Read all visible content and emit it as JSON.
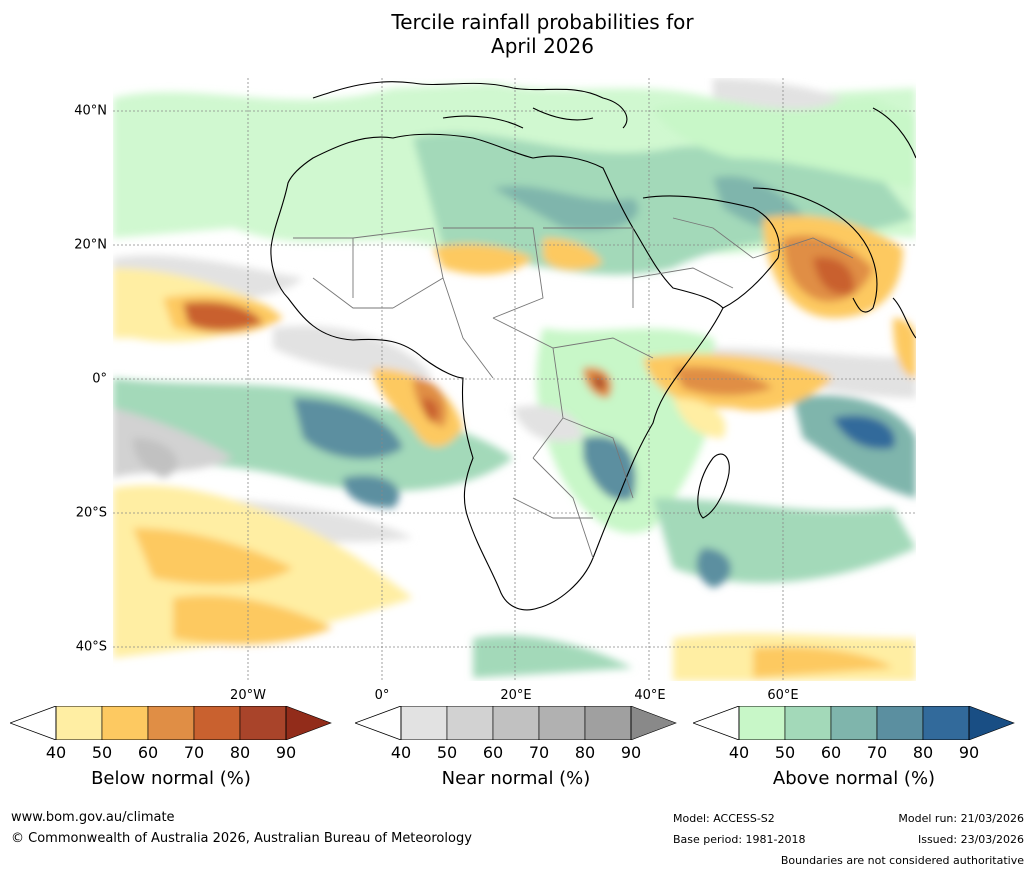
{
  "title": {
    "line1": "Tercile rainfall probabilities for",
    "line2": "April 2026"
  },
  "axes": {
    "lat_labels": [
      "40°N",
      "20°N",
      "0°",
      "20°S",
      "40°S"
    ],
    "lon_labels": [
      "20°W",
      "0°",
      "20°E",
      "40°E",
      "60°E"
    ]
  },
  "legend": {
    "below": {
      "label": "Below normal (%)",
      "ticks": [
        "40",
        "50",
        "60",
        "70",
        "80",
        "90"
      ],
      "colors": [
        "#ffeea3",
        "#fdc961",
        "#e08e45",
        "#c9612f",
        "#a9442a",
        "#922c1a"
      ]
    },
    "near": {
      "label": "Near normal (%)",
      "ticks": [
        "40",
        "50",
        "60",
        "70",
        "80",
        "90"
      ],
      "colors": [
        "#e2e2e2",
        "#d2d2d2",
        "#c1c1c1",
        "#b1b1b1",
        "#a0a0a0",
        "#898989"
      ]
    },
    "above": {
      "label": "Above normal (%)",
      "ticks": [
        "40",
        "50",
        "60",
        "70",
        "80",
        "90"
      ],
      "colors": [
        "#c8f7c8",
        "#a3d9b9",
        "#7fb5ac",
        "#5b8fa0",
        "#326a9b",
        "#194e84"
      ]
    }
  },
  "footer": {
    "website": "www.bom.gov.au/climate",
    "copyright": "© Commonwealth of Australia 2026, Australian Bureau of Meteorology",
    "model": "Model: ACCESS-S2",
    "base_period": "Base period: 1981-2018",
    "model_run": "Model run: 21/03/2026",
    "issued": "Issued: 23/03/2026",
    "disclaimer": "Boundaries are not considered authoritative"
  }
}
